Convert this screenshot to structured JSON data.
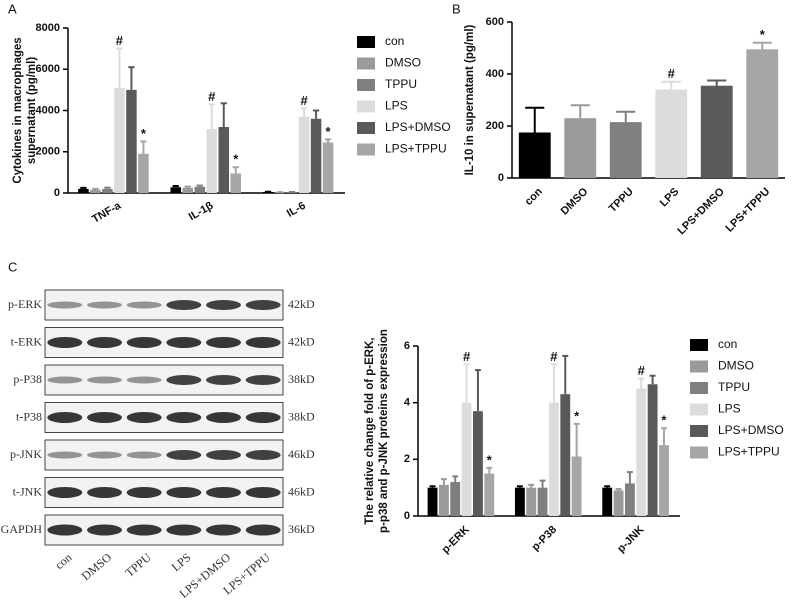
{
  "chart_data": [
    {
      "type": "bar",
      "panel": "A",
      "ylabel": [
        "Cytokines in macrophages",
        "supernatant (pg/ml)"
      ],
      "categories": [
        "TNF-a",
        "IL-1β",
        "IL-6"
      ],
      "ylim": [
        0,
        8000
      ],
      "yticks": [
        0,
        2000,
        4000,
        6000,
        8000
      ],
      "legend": "right",
      "series": [
        {
          "name": "con",
          "color": "#000000",
          "values": [
            200,
            280,
            50
          ],
          "errors": [
            50,
            60,
            10
          ]
        },
        {
          "name": "DMSO",
          "color": "#9a9a9a",
          "values": [
            150,
            250,
            30
          ],
          "errors": [
            50,
            60,
            10
          ]
        },
        {
          "name": "TPPU",
          "color": "#7f7f7f",
          "values": [
            200,
            300,
            40
          ],
          "errors": [
            60,
            60,
            10
          ]
        },
        {
          "name": "LPS",
          "color": "#dcdcdc",
          "values": [
            5100,
            3100,
            3700
          ],
          "errors": [
            1900,
            1200,
            400
          ],
          "markers": [
            "#",
            "#",
            "#"
          ]
        },
        {
          "name": "LPS+DMSO",
          "color": "#5a5a5a",
          "values": [
            5000,
            3200,
            3600
          ],
          "errors": [
            1100,
            1150,
            400
          ]
        },
        {
          "name": "LPS+TPPU",
          "color": "#a6a6a6",
          "values": [
            1900,
            950,
            2450
          ],
          "errors": [
            600,
            300,
            150
          ],
          "markers": [
            "*",
            "*",
            "*"
          ]
        }
      ]
    },
    {
      "type": "bar",
      "panel": "B",
      "ylabel": [
        "IL-10 in supernatant (pg/ml)"
      ],
      "categories": [
        "con",
        "DMSO",
        "TPPU",
        "LPS",
        "LPS+DMSO",
        "LPS+TPPU"
      ],
      "ylim": [
        0,
        600
      ],
      "yticks": [
        0,
        200,
        400,
        600
      ],
      "values": [
        175,
        230,
        215,
        340,
        355,
        495
      ],
      "errors": [
        95,
        50,
        40,
        30,
        20,
        25
      ],
      "markers": [
        null,
        null,
        null,
        "#",
        null,
        "*"
      ],
      "colors": [
        "#000000",
        "#9a9a9a",
        "#7f7f7f",
        "#dcdcdc",
        "#5a5a5a",
        "#a6a6a6"
      ]
    },
    {
      "type": "bar",
      "panel": "C",
      "ylabel": [
        "The relative change fold of p-ERK,",
        "p-p38 and p-JNK proteins expression"
      ],
      "categories": [
        "p-ERK",
        "p-P38",
        "p-JNK"
      ],
      "ylim": [
        0,
        6
      ],
      "yticks": [
        0,
        2,
        4,
        6
      ],
      "legend": "right",
      "series": [
        {
          "name": "con",
          "color": "#000000",
          "values": [
            1,
            1,
            1
          ],
          "errors": [
            0.05,
            0.05,
            0.05
          ]
        },
        {
          "name": "DMSO",
          "color": "#9a9a9a",
          "values": [
            1.1,
            1.0,
            0.9
          ],
          "errors": [
            0.2,
            0.1,
            0.05
          ]
        },
        {
          "name": "TPPU",
          "color": "#7f7f7f",
          "values": [
            1.2,
            1.0,
            1.15
          ],
          "errors": [
            0.2,
            0.25,
            0.4
          ]
        },
        {
          "name": "LPS",
          "color": "#dcdcdc",
          "values": [
            4.0,
            4.0,
            4.5
          ],
          "errors": [
            1.35,
            1.35,
            0.35
          ],
          "markers": [
            "#",
            "#",
            "#"
          ]
        },
        {
          "name": "LPS+DMSO",
          "color": "#5a5a5a",
          "values": [
            3.7,
            4.3,
            4.65
          ],
          "errors": [
            1.45,
            1.35,
            0.3
          ]
        },
        {
          "name": "LPS+TPPU",
          "color": "#a6a6a6",
          "values": [
            1.5,
            2.1,
            2.5
          ],
          "errors": [
            0.2,
            1.15,
            0.6
          ],
          "markers": [
            "*",
            "*",
            "*"
          ]
        }
      ]
    }
  ],
  "blot": {
    "rows": [
      {
        "protein": "p-ERK",
        "size": "42kD"
      },
      {
        "protein": "t-ERK",
        "size": "42kD"
      },
      {
        "protein": "p-P38",
        "size": "38kD"
      },
      {
        "protein": "t-P38",
        "size": "38kD"
      },
      {
        "protein": "p-JNK",
        "size": "46kD"
      },
      {
        "protein": "t-JNK",
        "size": "46kD"
      },
      {
        "protein": "GAPDH",
        "size": "36kD"
      }
    ],
    "lanes": [
      "con",
      "DMSO",
      "TPPU",
      "LPS",
      "LPS+DMSO",
      "LPS+TPPU"
    ]
  }
}
